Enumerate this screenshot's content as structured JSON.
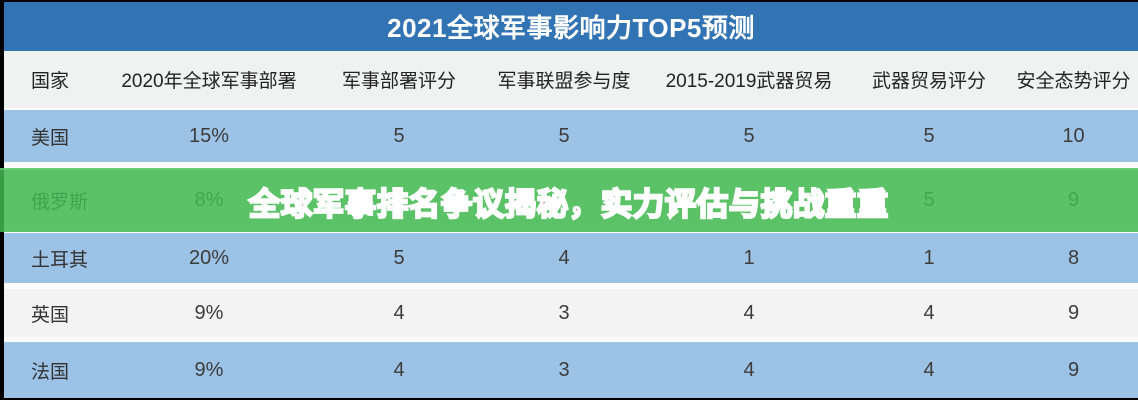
{
  "title": "2021全球军事影响力TOP5预测",
  "banner": {
    "text": "全球军事排名争议揭秘，实力评估与挑战重重",
    "bg_color": "#42b850",
    "text_color": "#e41e26",
    "stroke_color": "#ffffff"
  },
  "colors": {
    "titlebar_blue": "#3273b4",
    "row_blue": "#9cc3e6",
    "row_white": "#f2f3f2",
    "header_gray": "#f0f1f1",
    "frame_black": "#000000"
  },
  "table": {
    "columns": [
      "国家",
      "2020年全球军事部署",
      "军事部署评分",
      "军事联盟参与度",
      "2015-2019武器贸易",
      "武器贸易评分",
      "安全态势评分"
    ],
    "rows": [
      {
        "country": "美国",
        "cells": [
          "15%",
          "5",
          "5",
          "5",
          "5",
          "10"
        ]
      },
      {
        "country": "俄罗斯",
        "cells": [
          "8%",
          "",
          "",
          "",
          "5",
          "9"
        ]
      },
      {
        "country": "土耳其",
        "cells": [
          "20%",
          "5",
          "4",
          "1",
          "1",
          "8"
        ]
      },
      {
        "country": "英国",
        "cells": [
          "9%",
          "4",
          "3",
          "4",
          "4",
          "9"
        ]
      },
      {
        "country": "法国",
        "cells": [
          "9%",
          "4",
          "3",
          "4",
          "4",
          "9"
        ]
      }
    ]
  },
  "chart_data": {
    "type": "table",
    "title": "2021全球军事影响力TOP5预测",
    "columns": [
      "国家",
      "2020年全球军事部署",
      "军事部署评分",
      "军事联盟参与度",
      "2015-2019武器贸易",
      "武器贸易评分",
      "安全态势评分"
    ],
    "rows": [
      [
        "美国",
        "15%",
        "5",
        "5",
        "5",
        "5",
        "10"
      ],
      [
        "俄罗斯",
        "8%",
        "",
        "",
        "",
        "5",
        "9"
      ],
      [
        "土耳其",
        "20%",
        "5",
        "4",
        "1",
        "1",
        "8"
      ],
      [
        "英国",
        "9%",
        "4",
        "3",
        "4",
        "4",
        "9"
      ],
      [
        "法国",
        "9%",
        "4",
        "3",
        "4",
        "4",
        "9"
      ]
    ],
    "notes": "俄罗斯行的军事部署评分、军事联盟参与度、2015-2019武器贸易三个单元格被绿色横幅遮挡"
  }
}
